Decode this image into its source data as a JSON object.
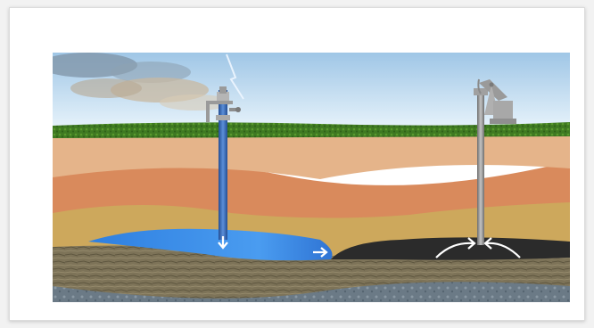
{
  "figure": {
    "description_icons": [
      "injection-well-icon",
      "pumpjack-icon",
      "flow-arrow-icon"
    ],
    "colors": {
      "sky_top": "#9fc6e6",
      "sky_bottom": "#dfeef8",
      "grass": "#3f7a22",
      "topsoil": "#e5b48a",
      "clay": "#d98a5c",
      "sand": "#cda85c",
      "water": "#3f8fe8",
      "oil": "#2b2b2b",
      "bedrock": "#7d7358",
      "deep_rock": "#6b7a86",
      "well_casing_water": "#2f5fae",
      "well_casing_oil": "#8a8a8a"
    }
  }
}
